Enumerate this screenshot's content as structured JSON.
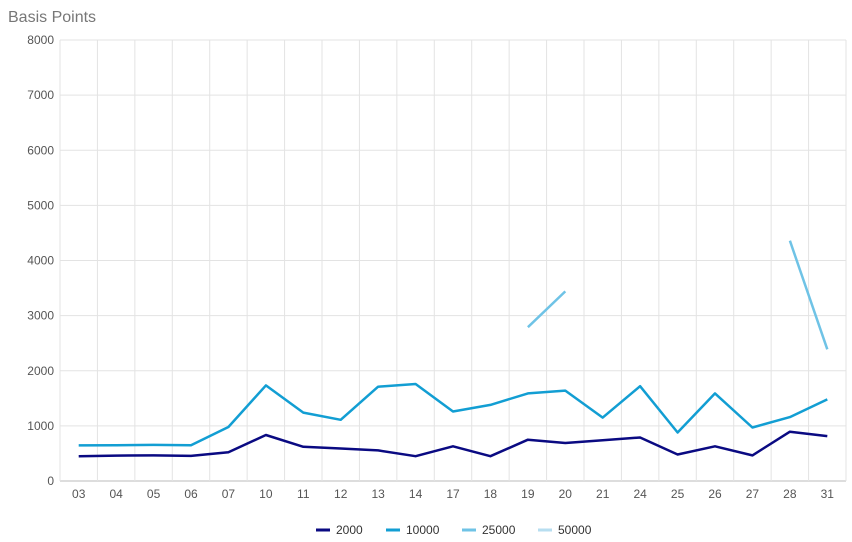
{
  "chart_data": {
    "type": "line",
    "ylabel": "Basis Points",
    "xlabel": "",
    "ylim": [
      0,
      8000
    ],
    "yticks": [
      "0",
      "1000",
      "2000",
      "3000",
      "4000",
      "5000",
      "6000",
      "7000",
      "8000"
    ],
    "grid": true,
    "legend_position": "bottom-center",
    "categories": [
      "03",
      "04",
      "05",
      "06",
      "07",
      "10",
      "11",
      "12",
      "13",
      "14",
      "17",
      "18",
      "19",
      "20",
      "21",
      "24",
      "25",
      "26",
      "27",
      "28",
      "31"
    ],
    "series": [
      {
        "name": "2000",
        "color": "#0a0a82",
        "values": [
          450,
          460,
          465,
          455,
          520,
          835,
          620,
          590,
          555,
          450,
          630,
          450,
          750,
          690,
          740,
          790,
          480,
          630,
          465,
          895,
          815
        ]
      },
      {
        "name": "10000",
        "color": "#129ed3",
        "values": [
          645,
          648,
          655,
          650,
          980,
          1735,
          1240,
          1110,
          1710,
          1760,
          1260,
          1380,
          1590,
          1640,
          1150,
          1720,
          880,
          1590,
          970,
          1160,
          1480
        ]
      },
      {
        "name": "25000",
        "color": "#6fc3e6",
        "values": [
          null,
          null,
          null,
          null,
          null,
          null,
          null,
          null,
          null,
          null,
          null,
          null,
          2790,
          3440,
          null,
          null,
          null,
          null,
          null,
          4360,
          2390
        ]
      },
      {
        "name": "50000",
        "color": "#b7def0",
        "values": [
          null,
          null,
          null,
          null,
          null,
          null,
          null,
          null,
          null,
          null,
          null,
          null,
          null,
          null,
          null,
          null,
          null,
          null,
          null,
          null,
          null
        ]
      }
    ]
  }
}
